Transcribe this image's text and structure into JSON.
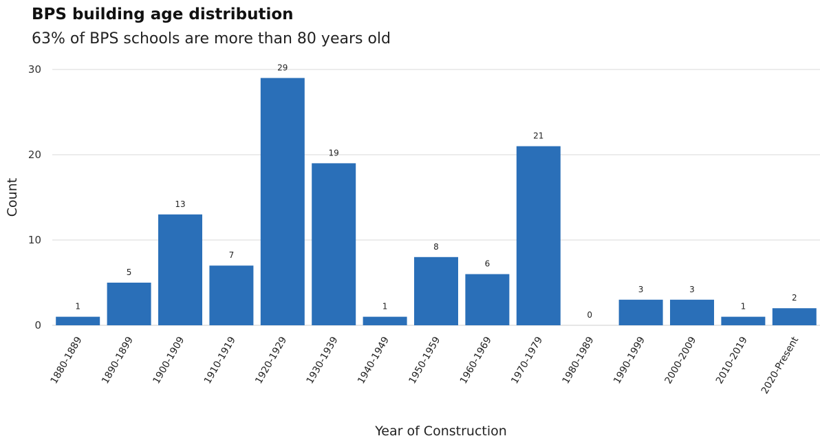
{
  "title": "BPS building age distribution",
  "subtitle": "63% of BPS schools are more than 80 years old",
  "colors": {
    "bar": "#2a6fb8",
    "grid": "#d9d9d9",
    "axis": "#cccccc"
  },
  "chart_data": {
    "type": "bar",
    "title": "BPS building age distribution",
    "subtitle": "63% of BPS schools are more than 80 years old",
    "xlabel": "Year of Construction",
    "ylabel": "Count",
    "ylim": [
      0,
      30
    ],
    "yticks": [
      0,
      10,
      20,
      30
    ],
    "grid": true,
    "categories": [
      "1880-1889",
      "1890-1899",
      "1900-1909",
      "1910-1919",
      "1920-1929",
      "1930-1939",
      "1940-1949",
      "1950-1959",
      "1960-1969",
      "1970-1979",
      "1980-1989",
      "1990-1999",
      "2000-2009",
      "2010-2019",
      "2020-Present"
    ],
    "values": [
      1,
      5,
      13,
      7,
      29,
      19,
      1,
      8,
      6,
      21,
      0,
      3,
      3,
      1,
      2
    ]
  }
}
